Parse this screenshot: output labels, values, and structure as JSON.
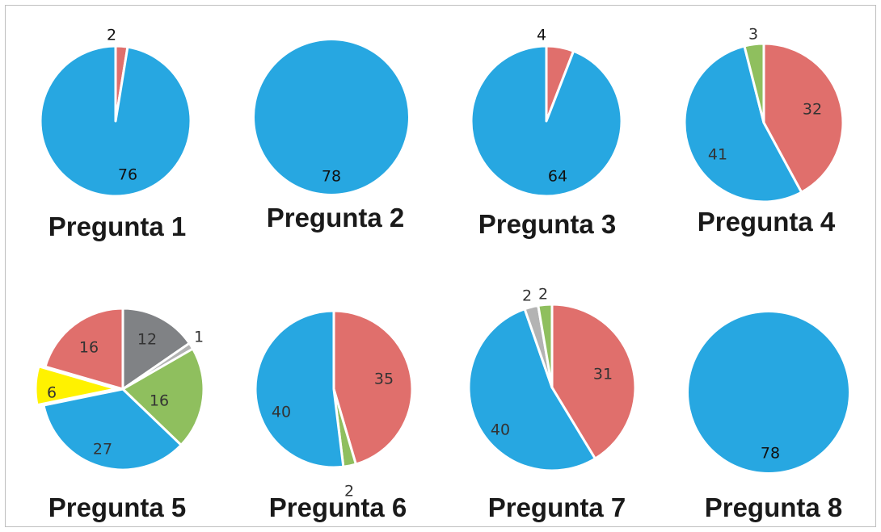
{
  "chart_data": [
    {
      "type": "pie",
      "title": "Pregunta 1",
      "values": [
        2,
        76
      ],
      "colors": [
        "#e06f6c",
        "#27a7e1"
      ],
      "labels": [
        "2",
        "76"
      ]
    },
    {
      "type": "pie",
      "title": "Pregunta 2",
      "values": [
        78
      ],
      "colors": [
        "#27a7e1"
      ],
      "labels": [
        "78"
      ]
    },
    {
      "type": "pie",
      "title": "Pregunta 3",
      "values": [
        4,
        64
      ],
      "colors": [
        "#e06f6c",
        "#27a7e1"
      ],
      "labels": [
        "4",
        "64"
      ]
    },
    {
      "type": "pie",
      "title": "Pregunta 4",
      "values": [
        32,
        41,
        3
      ],
      "colors": [
        "#e06f6c",
        "#27a7e1",
        "#8fbf5e"
      ],
      "labels": [
        "32",
        "41",
        "3"
      ]
    },
    {
      "type": "pie",
      "title": "Pregunta 5",
      "values": [
        12,
        1,
        16,
        27,
        6,
        16
      ],
      "colors": [
        "#808285",
        "#b3b3b3",
        "#8fbf5e",
        "#27a7e1",
        "#fff200",
        "#e06f6c"
      ],
      "labels": [
        "12",
        "1",
        "16",
        "27",
        "6",
        "16"
      ]
    },
    {
      "type": "pie",
      "title": "Pregunta 6",
      "values": [
        35,
        2,
        40
      ],
      "colors": [
        "#e06f6c",
        "#8fbf5e",
        "#27a7e1"
      ],
      "labels": [
        "35",
        "2",
        "40"
      ]
    },
    {
      "type": "pie",
      "title": "Pregunta 7",
      "values": [
        31,
        40,
        2,
        2
      ],
      "colors": [
        "#e06f6c",
        "#27a7e1",
        "#b3b3b3",
        "#8fbf5e"
      ],
      "labels": [
        "31",
        "40",
        "2",
        "2"
      ]
    },
    {
      "type": "pie",
      "title": "Pregunta 8",
      "values": [
        78
      ],
      "colors": [
        "#27a7e1"
      ],
      "labels": [
        "78"
      ]
    }
  ]
}
